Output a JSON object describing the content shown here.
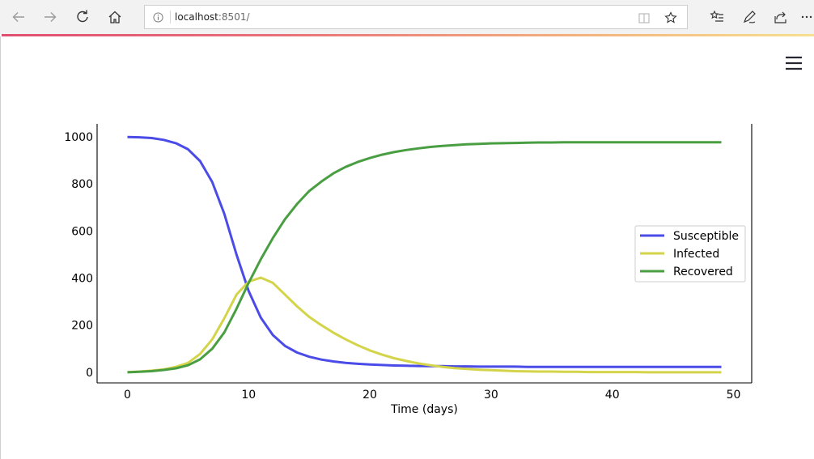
{
  "browser": {
    "url_host": "localhost",
    "url_rest": ":8501/"
  },
  "icons": [
    "back-icon",
    "forward-icon",
    "refresh-icon",
    "home-icon",
    "info-icon",
    "reading-view-icon",
    "favorite-star-icon",
    "favorites-list-icon",
    "pen-icon",
    "share-icon",
    "more-icon",
    "hamburger-menu-icon"
  ],
  "chart_data": {
    "type": "line",
    "title": "",
    "xlabel": "Time (days)",
    "ylabel": "",
    "xlim": [
      -2.5,
      51.5
    ],
    "ylim": [
      -45,
      1055
    ],
    "xticks": [
      0,
      10,
      20,
      30,
      40,
      50
    ],
    "yticks": [
      0,
      200,
      400,
      600,
      800,
      1000
    ],
    "grid": false,
    "legend_position": "center-right",
    "x": [
      0,
      1,
      2,
      3,
      4,
      5,
      6,
      7,
      8,
      9,
      10,
      11,
      12,
      13,
      14,
      15,
      16,
      17,
      18,
      19,
      20,
      21,
      22,
      23,
      24,
      25,
      26,
      27,
      28,
      29,
      30,
      31,
      32,
      33,
      34,
      35,
      36,
      37,
      38,
      39,
      40,
      41,
      42,
      43,
      44,
      45,
      46,
      47,
      48,
      49
    ],
    "series": [
      {
        "name": "Susceptible",
        "color": "#4b4be8",
        "values": [
          999,
          998,
          995,
          987,
          973,
          947,
          897,
          808,
          672,
          500,
          345,
          232,
          158,
          112,
          84,
          66,
          54,
          46,
          40,
          36,
          33,
          31,
          29,
          28,
          27,
          26,
          26,
          25,
          25,
          24,
          24,
          24,
          24,
          23,
          23,
          23,
          23,
          23,
          23,
          23,
          23,
          23,
          23,
          23,
          23,
          23,
          23,
          23,
          23,
          23
        ]
      },
      {
        "name": "Infected",
        "color": "#d4d44a",
        "values": [
          1,
          3,
          7,
          12,
          23,
          40,
          78,
          140,
          230,
          330,
          385,
          402,
          380,
          330,
          280,
          235,
          200,
          168,
          140,
          115,
          93,
          75,
          60,
          48,
          38,
          30,
          23,
          18,
          14,
          11,
          9,
          7,
          5,
          4,
          3,
          3,
          2,
          2,
          1,
          1,
          1,
          1,
          1,
          0,
          0,
          0,
          0,
          0,
          0,
          0
        ]
      },
      {
        "name": "Recovered",
        "color": "#4a9e42",
        "values": [
          0,
          2,
          5,
          10,
          17,
          30,
          55,
          100,
          170,
          270,
          380,
          480,
          570,
          650,
          715,
          770,
          810,
          845,
          872,
          893,
          910,
          924,
          935,
          944,
          951,
          957,
          961,
          965,
          968,
          970,
          972,
          973,
          974,
          975,
          976,
          976,
          977,
          977,
          977,
          977,
          977,
          977,
          977,
          977,
          977,
          977,
          977,
          977,
          977,
          977
        ]
      }
    ]
  }
}
